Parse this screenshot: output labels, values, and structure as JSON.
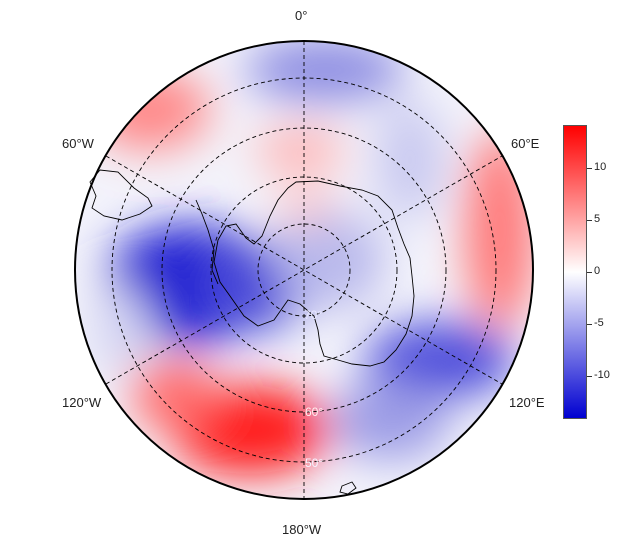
{
  "map": {
    "projection": "south-polar stereographic",
    "meridian_labels": {
      "top": "0°",
      "upper_left": "60°W",
      "upper_right": "60°E",
      "lower_left": "120°W",
      "lower_right": "120°E",
      "bottom": "180°W"
    },
    "latitude_labels": {
      "inner": "70°",
      "middle": "60°",
      "outer": "50°"
    },
    "colorbar": {
      "min": -14,
      "max": 14,
      "ticks": [
        "10",
        "5",
        "0",
        "-5",
        "-10"
      ],
      "tick_values": [
        10,
        5,
        0,
        -5,
        -10
      ],
      "colors": {
        "low": "#0000d0",
        "mid": "#ffffff",
        "high": "#ff0000"
      }
    },
    "grid_color": "#000000",
    "coastline_color": "#000000"
  }
}
